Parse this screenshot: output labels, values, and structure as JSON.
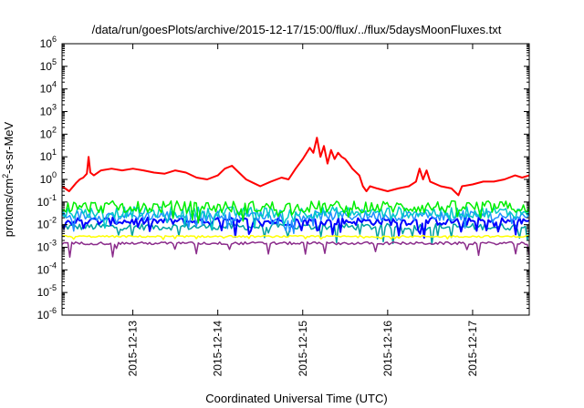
{
  "chart_data": {
    "type": "line",
    "title": "/data/run/goesPlots/archive/2015-12-17/15:00/flux/../flux/5daysMoonFluxes.txt",
    "xlabel": "Coordinated Universal Time (UTC)",
    "ylabel": {
      "pre": "protons/cm",
      "sup": "2",
      "post": "-s-sr-MeV"
    },
    "yscale": "log",
    "ylim": [
      1e-06,
      1000000.0
    ],
    "xlim": [
      "2015-12-12 04:00",
      "2015-12-17 16:00"
    ],
    "x_ticks": [
      "2015-12-13",
      "2015-12-14",
      "2015-12-15",
      "2015-12-16",
      "2015-12-17"
    ],
    "y_ticks": [
      {
        "base": "10",
        "exp": "-6"
      },
      {
        "base": "10",
        "exp": "-5"
      },
      {
        "base": "10",
        "exp": "-4"
      },
      {
        "base": "10",
        "exp": "-3"
      },
      {
        "base": "10",
        "exp": "-2"
      },
      {
        "base": "10",
        "exp": "-1"
      },
      {
        "base": "10",
        "exp": "0"
      },
      {
        "base": "10",
        "exp": "1"
      },
      {
        "base": "10",
        "exp": "2"
      },
      {
        "base": "10",
        "exp": "3"
      },
      {
        "base": "10",
        "exp": "4"
      },
      {
        "base": "10",
        "exp": "5"
      },
      {
        "base": "10",
        "exp": "6"
      }
    ],
    "grid": false,
    "series": [
      {
        "color": "#ff0000",
        "points": [
          [
            "2015-12-12 04:00",
            0.5
          ],
          [
            "2015-12-12 06:00",
            0.3
          ],
          [
            "2015-12-12 08:00",
            0.7
          ],
          [
            "2015-12-12 09:00",
            1.0
          ],
          [
            "2015-12-12 10:00",
            1.2
          ],
          [
            "2015-12-12 11:00",
            1.8
          ],
          [
            "2015-12-12 11:30",
            10
          ],
          [
            "2015-12-12 12:00",
            2.0
          ],
          [
            "2015-12-12 13:00",
            1.5
          ],
          [
            "2015-12-12 15:00",
            2.5
          ],
          [
            "2015-12-12 18:00",
            3.0
          ],
          [
            "2015-12-12 21:00",
            2.5
          ],
          [
            "2015-12-13 00:00",
            3.0
          ],
          [
            "2015-12-13 03:00",
            2.5
          ],
          [
            "2015-12-13 06:00",
            2.0
          ],
          [
            "2015-12-13 09:00",
            1.8
          ],
          [
            "2015-12-13 12:00",
            2.5
          ],
          [
            "2015-12-13 15:00",
            2.0
          ],
          [
            "2015-12-13 18:00",
            1.2
          ],
          [
            "2015-12-13 21:00",
            1.0
          ],
          [
            "2015-12-14 00:00",
            1.5
          ],
          [
            "2015-12-14 02:00",
            3.0
          ],
          [
            "2015-12-14 04:00",
            4.0
          ],
          [
            "2015-12-14 06:00",
            2.0
          ],
          [
            "2015-12-14 08:00",
            1.0
          ],
          [
            "2015-12-14 10:00",
            0.7
          ],
          [
            "2015-12-14 12:00",
            0.5
          ],
          [
            "2015-12-14 15:00",
            0.8
          ],
          [
            "2015-12-14 18:00",
            1.2
          ],
          [
            "2015-12-14 20:00",
            1.0
          ],
          [
            "2015-12-14 22:00",
            3.0
          ],
          [
            "2015-12-15 00:00",
            8.0
          ],
          [
            "2015-12-15 02:00",
            25
          ],
          [
            "2015-12-15 03:00",
            15
          ],
          [
            "2015-12-15 04:00",
            70
          ],
          [
            "2015-12-15 05:00",
            10
          ],
          [
            "2015-12-15 06:00",
            30
          ],
          [
            "2015-12-15 07:00",
            5
          ],
          [
            "2015-12-15 08:00",
            20
          ],
          [
            "2015-12-15 09:00",
            8
          ],
          [
            "2015-12-15 10:00",
            15
          ],
          [
            "2015-12-15 11:00",
            10
          ],
          [
            "2015-12-15 12:00",
            8
          ],
          [
            "2015-12-15 13:00",
            5
          ],
          [
            "2015-12-15 14:00",
            3
          ],
          [
            "2015-12-15 16:00",
            1.5
          ],
          [
            "2015-12-15 17:00",
            0.5
          ],
          [
            "2015-12-15 18:00",
            0.3
          ],
          [
            "2015-12-15 19:00",
            0.5
          ],
          [
            "2015-12-15 21:00",
            0.4
          ],
          [
            "2015-12-16 00:00",
            0.3
          ],
          [
            "2015-12-16 03:00",
            0.4
          ],
          [
            "2015-12-16 06:00",
            0.5
          ],
          [
            "2015-12-16 08:00",
            0.8
          ],
          [
            "2015-12-16 09:00",
            3.0
          ],
          [
            "2015-12-16 10:00",
            1.0
          ],
          [
            "2015-12-16 11:00",
            2.5
          ],
          [
            "2015-12-16 12:00",
            0.8
          ],
          [
            "2015-12-16 15:00",
            0.5
          ],
          [
            "2015-12-16 18:00",
            0.4
          ],
          [
            "2015-12-16 20:00",
            0.2
          ],
          [
            "2015-12-16 21:00",
            0.5
          ],
          [
            "2015-12-17 00:00",
            0.6
          ],
          [
            "2015-12-17 03:00",
            0.8
          ],
          [
            "2015-12-17 06:00",
            0.8
          ],
          [
            "2015-12-17 09:00",
            1.0
          ],
          [
            "2015-12-17 12:00",
            1.5
          ],
          [
            "2015-12-17 14:00",
            1.2
          ],
          [
            "2015-12-17 16:00",
            1.5
          ]
        ]
      },
      {
        "color": "#00ee00",
        "base": 0.06,
        "jitter": 0.55,
        "dips": 0.35
      },
      {
        "color": "#00c8c8",
        "base": 0.035,
        "jitter": 0.5,
        "dips": 0.5
      },
      {
        "color": "#1e90ff",
        "base": 0.025,
        "jitter": 0.45,
        "dips": 0.45
      },
      {
        "color": "#0000ff",
        "base": 0.014,
        "jitter": 0.35,
        "dips": 0.4
      },
      {
        "color": "#00a0a0",
        "base": 0.008,
        "jitter": 0.3,
        "dips": 0.45
      },
      {
        "color": "#ffff00",
        "base": 0.003,
        "jitter": 0.08,
        "dips": 0.1
      },
      {
        "color": "#8b2c8b",
        "base": 0.0015,
        "jitter": 0.12,
        "dips": 0.4
      }
    ]
  }
}
